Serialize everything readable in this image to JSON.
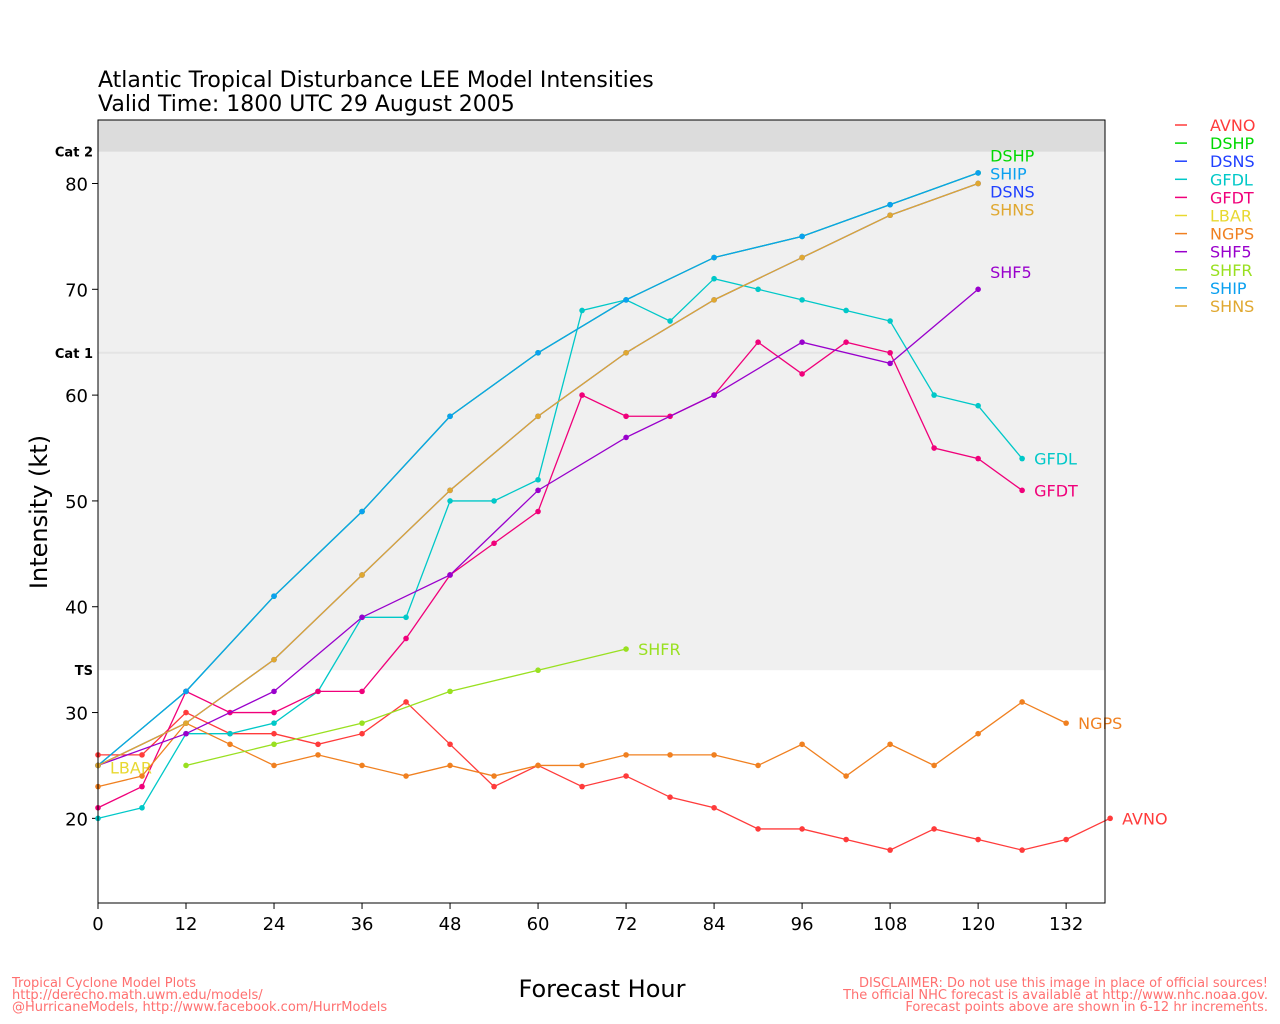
{
  "chart_data": {
    "type": "line",
    "title": "Atlantic Tropical Disturbance LEE Model Intensities",
    "subtitle": "Valid Time: 1800 UTC 29 August 2005",
    "xlabel": "Forecast Hour",
    "ylabel": "Intensity (kt)",
    "xlim": [
      0,
      137.3
    ],
    "ylim": [
      12,
      86
    ],
    "xticks": [
      0,
      12,
      24,
      36,
      48,
      60,
      72,
      84,
      96,
      108,
      120,
      132
    ],
    "yticks": [
      20,
      30,
      40,
      50,
      60,
      70,
      80
    ],
    "thresholds": [
      {
        "label": "TS",
        "value": 34
      },
      {
        "label": "Cat 1",
        "value": 64
      },
      {
        "label": "Cat 2",
        "value": 83
      }
    ],
    "legend_position": "right",
    "series": [
      {
        "name": "AVNO",
        "color": "#ff3b3b",
        "x": [
          0,
          6,
          12,
          18,
          24,
          30,
          36,
          42,
          48,
          54,
          60,
          66,
          72,
          78,
          84,
          90,
          96,
          102,
          108,
          114,
          120,
          126,
          132,
          138
        ],
        "y": [
          26,
          26,
          30,
          28,
          28,
          27,
          28,
          31,
          27,
          23,
          25,
          23,
          24,
          22,
          21,
          19,
          19,
          18,
          17,
          19,
          18,
          17,
          18,
          20
        ]
      },
      {
        "name": "DSHP",
        "color": "#00d800",
        "x": [
          0,
          12,
          24,
          36,
          48,
          60,
          72,
          84,
          96,
          108,
          120
        ],
        "y": [
          25,
          32,
          41,
          49,
          58,
          64,
          69,
          73,
          75,
          78,
          81
        ]
      },
      {
        "name": "DSNS",
        "color": "#2040ff",
        "x": [
          0,
          12,
          24,
          36,
          48,
          60,
          72,
          84,
          96,
          108,
          120
        ],
        "y": [
          25,
          29,
          35,
          43,
          51,
          58,
          64,
          69,
          73,
          77,
          80
        ]
      },
      {
        "name": "GFDL",
        "color": "#00c8c8",
        "x": [
          0,
          6,
          12,
          18,
          24,
          30,
          36,
          42,
          48,
          54,
          60,
          66,
          72,
          78,
          84,
          90,
          96,
          102,
          108,
          114,
          120,
          126
        ],
        "y": [
          20,
          21,
          28,
          28,
          29,
          32,
          39,
          39,
          50,
          50,
          52,
          68,
          69,
          67,
          71,
          70,
          69,
          68,
          67,
          60,
          59,
          54
        ]
      },
      {
        "name": "GFDT",
        "color": "#f0007a",
        "x": [
          0,
          6,
          12,
          18,
          24,
          30,
          36,
          42,
          48,
          54,
          60,
          66,
          72,
          78,
          84,
          90,
          96,
          102,
          108,
          114,
          120,
          126
        ],
        "y": [
          21,
          23,
          32,
          30,
          30,
          32,
          32,
          37,
          43,
          46,
          49,
          60,
          58,
          58,
          60,
          65,
          62,
          65,
          64,
          55,
          54,
          51
        ]
      },
      {
        "name": "LBAR",
        "color": "#e8d830",
        "x": [
          0
        ],
        "y": [
          25
        ]
      },
      {
        "name": "NGPS",
        "color": "#f08020",
        "x": [
          0,
          6,
          12,
          18,
          24,
          30,
          36,
          42,
          48,
          54,
          60,
          66,
          72,
          78,
          84,
          90,
          96,
          102,
          108,
          114,
          120,
          126,
          132
        ],
        "y": [
          23,
          24,
          29,
          27,
          25,
          26,
          25,
          24,
          25,
          24,
          25,
          25,
          26,
          26,
          26,
          25,
          27,
          24,
          27,
          25,
          28,
          31,
          29
        ]
      },
      {
        "name": "SHF5",
        "color": "#9900cc",
        "x": [
          0,
          12,
          24,
          36,
          48,
          60,
          72,
          84,
          96,
          108,
          120
        ],
        "y": [
          25,
          28,
          32,
          39,
          43,
          51,
          56,
          60,
          65,
          63,
          70
        ]
      },
      {
        "name": "SHFR",
        "color": "#99e020",
        "x": [
          12,
          24,
          36,
          48,
          60,
          72
        ],
        "y": [
          25,
          27,
          29,
          32,
          34,
          36
        ]
      },
      {
        "name": "SHIP",
        "color": "#0aa0f0",
        "x": [
          0,
          12,
          24,
          36,
          48,
          60,
          72,
          84,
          96,
          108,
          120
        ],
        "y": [
          25,
          32,
          41,
          49,
          58,
          64,
          69,
          73,
          75,
          78,
          81
        ]
      },
      {
        "name": "SHNS",
        "color": "#e0a830",
        "x": [
          0,
          12,
          24,
          36,
          48,
          60,
          72,
          84,
          96,
          108,
          120
        ],
        "y": [
          25,
          29,
          35,
          43,
          51,
          58,
          64,
          69,
          73,
          77,
          80
        ]
      }
    ]
  },
  "footer": {
    "left": [
      "Tropical Cyclone Model Plots",
      "http://derecho.math.uwm.edu/models/",
      "@HurricaneModels, http://www.facebook.com/HurrModels"
    ],
    "right": [
      "DISCLAIMER: Do not use this image in place of official sources!",
      "The official NHC forecast is available at http://www.nhc.noaa.gov.",
      "Forecast points above are shown in 6-12 hr increments."
    ]
  }
}
